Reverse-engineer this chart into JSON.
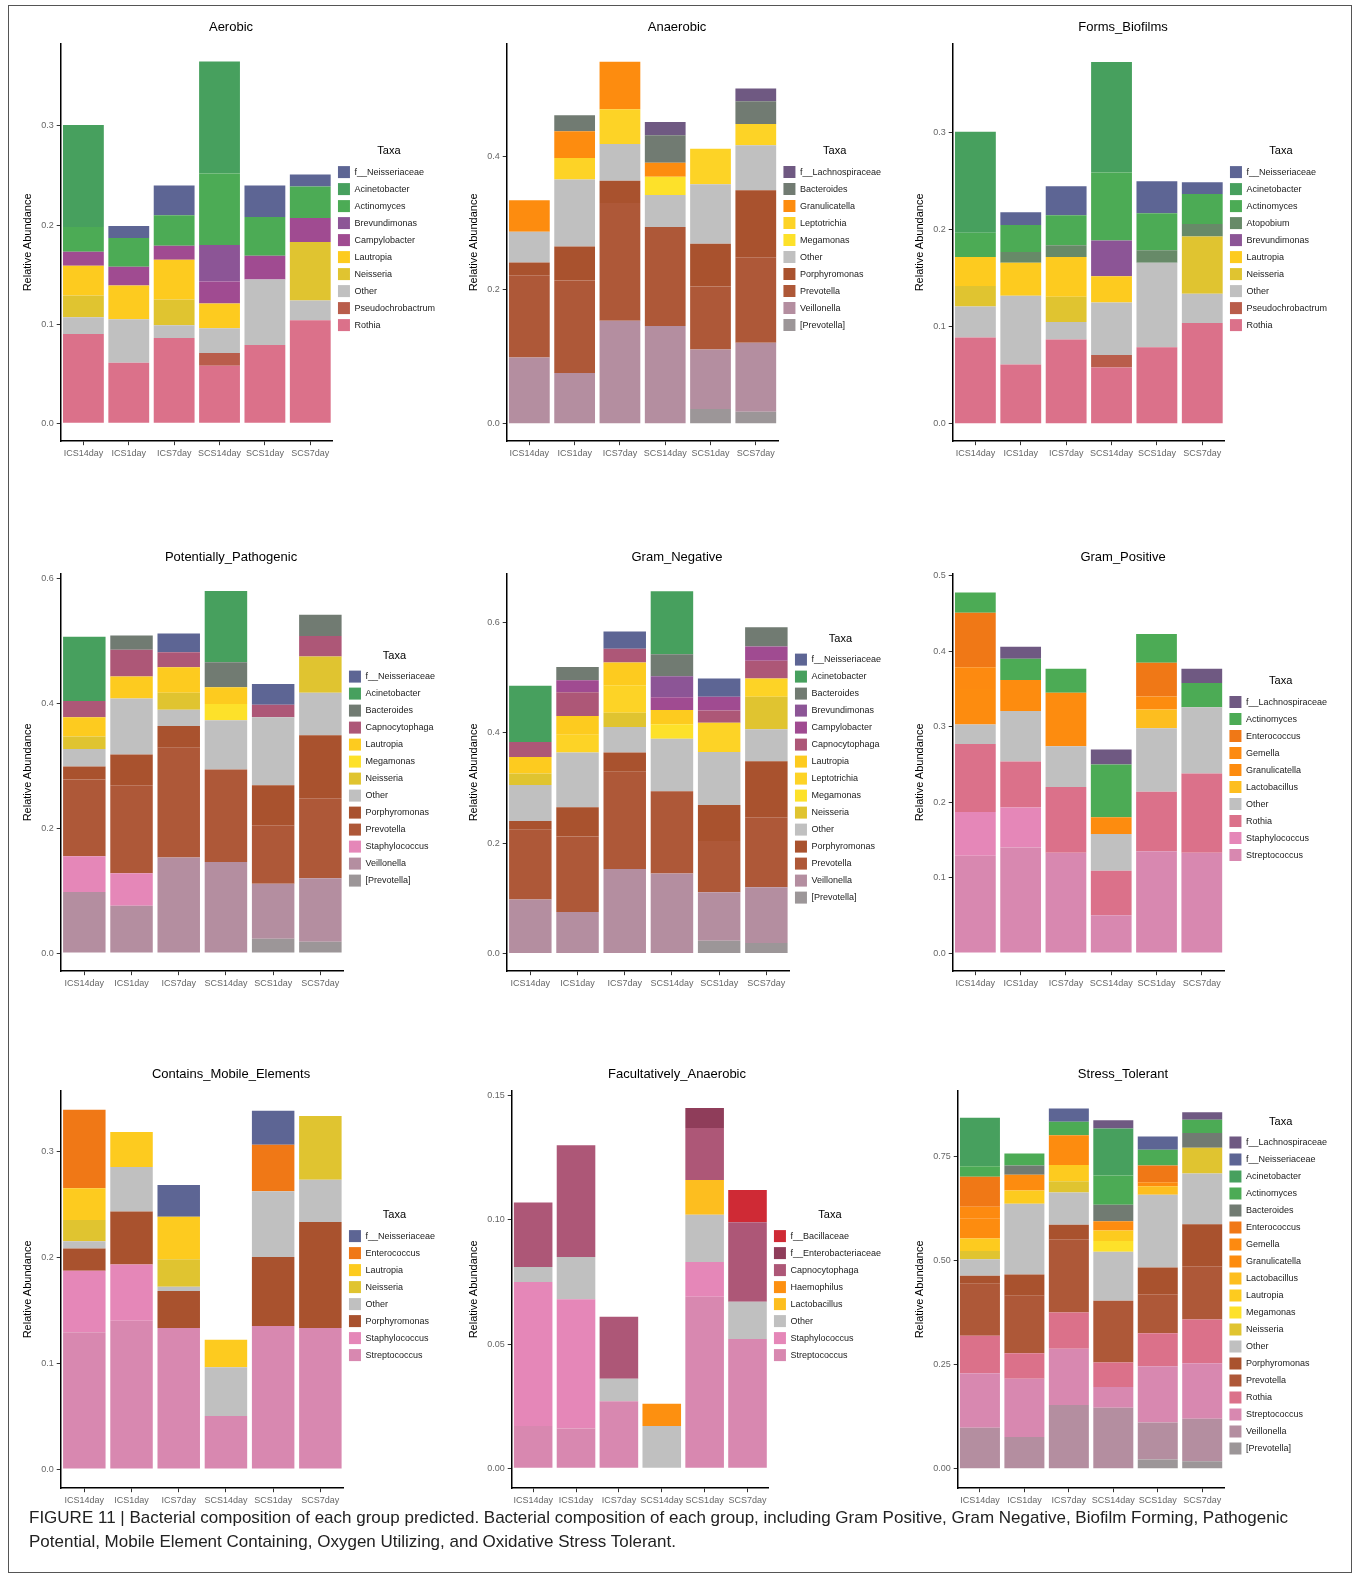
{
  "chart_data": [
    {
      "type": "bar",
      "title": "Aerobic",
      "ylabel": "Relative Abundance",
      "stacked": true,
      "legend": "right",
      "legend_title": "Taxa",
      "grid": false,
      "categories": [
        "ICS14day",
        "ICS1day",
        "ICS7day",
        "SCS14day",
        "SCS1day",
        "SCS7day"
      ],
      "ylim": [
        -0.018,
        0.383
      ],
      "yticks": [
        {
          "value": 0,
          "label": "0.0"
        },
        0.1,
        0.2,
        0.3
      ],
      "series": [
        {
          "name": "Rothia",
          "color": "#db718a",
          "values": [
            0.09,
            0.061,
            0.086,
            0.058,
            0.079,
            0.104
          ]
        },
        {
          "name": "Pseudochrobactrum",
          "color": "#b95d4b",
          "values": [
            null,
            null,
            null,
            0.013,
            null,
            null
          ]
        },
        {
          "name": "Other",
          "color": "#c0c0c0",
          "values": [
            0.017,
            0.044,
            0.013,
            0.025,
            0.066,
            0.02
          ]
        },
        {
          "name": "Neisseria",
          "color": "#e0c430",
          "values": [
            0.022,
            null,
            0.026,
            null,
            null,
            0.059
          ]
        },
        {
          "name": "Lautropia",
          "color": "#fdcb1f",
          "values": [
            0.03,
            0.034,
            0.04,
            0.025,
            null,
            null
          ]
        },
        {
          "name": "Campylobacter",
          "color": "#a04b91",
          "values": [
            0.014,
            0.019,
            0.014,
            0.022,
            0.024,
            0.024
          ]
        },
        {
          "name": "Brevundimonas",
          "color": "#8c5596",
          "values": [
            null,
            null,
            null,
            0.037,
            null,
            null
          ]
        },
        {
          "name": "Actinomyces",
          "color": "#4cab55",
          "values": [
            0.025,
            0.029,
            0.031,
            0.072,
            0.039,
            0.032
          ]
        },
        {
          "name": "Acinetobacter",
          "color": "#47a05e",
          "values": [
            0.103,
            null,
            null,
            0.113,
            null,
            null
          ]
        },
        {
          "name": "f__Neisseriaceae",
          "color": "#5d6594",
          "values": [
            null,
            0.012,
            0.03,
            null,
            0.032,
            0.012
          ]
        }
      ]
    },
    {
      "type": "bar",
      "title": "Anaerobic",
      "ylabel": "Relative Abundance",
      "stacked": true,
      "legend": "right",
      "legend_title": "Taxa",
      "grid": false,
      "categories": [
        "ICS14day",
        "ICS1day",
        "ICS7day",
        "SCS14day",
        "SCS1day",
        "SCS7day"
      ],
      "ylim": [
        -0.026,
        0.568
      ],
      "yticks": [
        {
          "value": 0,
          "label": "0.0"
        },
        0.2,
        0.4
      ],
      "series": [
        {
          "name": "[Prevotella]",
          "color": "#9c9698",
          "values": [
            null,
            null,
            null,
            null,
            0.022,
            0.018
          ]
        },
        {
          "name": "Veillonella",
          "color": "#b48ea0",
          "values": [
            0.099,
            0.076,
            0.154,
            0.146,
            0.089,
            0.103
          ]
        },
        {
          "name": "Prevotella",
          "color": "#ae5838",
          "values": [
            0.123,
            0.138,
            0.176,
            0.148,
            0.094,
            0.128
          ]
        },
        {
          "name": "Porphyromonas",
          "color": "#a9522e",
          "values": [
            0.019,
            0.051,
            0.033,
            null,
            0.064,
            0.1
          ]
        },
        {
          "name": "Other",
          "color": "#c0c0c0",
          "values": [
            0.046,
            0.1,
            0.055,
            0.048,
            0.089,
            0.067
          ]
        },
        {
          "name": "Megamonas",
          "color": "#fde12a",
          "values": [
            null,
            null,
            null,
            0.027,
            null,
            null
          ]
        },
        {
          "name": "Leptotrichia",
          "color": "#fdd326",
          "values": [
            null,
            0.032,
            0.052,
            null,
            0.053,
            0.032
          ]
        },
        {
          "name": "Granulicatella",
          "color": "#fd8c0f",
          "values": [
            0.047,
            0.04,
            0.071,
            0.021,
            null,
            null
          ]
        },
        {
          "name": "Bacteroides",
          "color": "#717b72",
          "values": [
            null,
            0.024,
            null,
            0.041,
            null,
            0.034
          ]
        },
        {
          "name": "f__Lachnospiraceae",
          "color": "#6f5982",
          "values": [
            null,
            null,
            null,
            0.02,
            null,
            0.019
          ]
        }
      ]
    },
    {
      "type": "bar",
      "title": "Forms_Biofilms",
      "ylabel": "Relative Abundance",
      "stacked": true,
      "legend": "right",
      "legend_title": "Taxa",
      "grid": false,
      "categories": [
        "ICS14day",
        "ICS1day",
        "ICS7day",
        "SCS14day",
        "SCS1day",
        "SCS7day"
      ],
      "ylim": [
        -0.018,
        0.392
      ],
      "yticks": [
        {
          "value": 0,
          "label": "0.0"
        },
        0.1,
        0.2,
        0.3
      ],
      "series": [
        {
          "name": "Rothia",
          "color": "#db718a",
          "values": [
            0.089,
            0.061,
            0.087,
            0.058,
            0.079,
            0.104
          ]
        },
        {
          "name": "Pseudochrobactrum",
          "color": "#b95d4b",
          "values": [
            null,
            null,
            null,
            0.013,
            null,
            null
          ]
        },
        {
          "name": "Other",
          "color": "#c0c0c0",
          "values": [
            0.032,
            0.071,
            0.018,
            0.054,
            0.087,
            0.03
          ]
        },
        {
          "name": "Neisseria",
          "color": "#e0c430",
          "values": [
            0.021,
            null,
            0.026,
            null,
            null,
            0.059
          ]
        },
        {
          "name": "Lautropia",
          "color": "#fdcb1f",
          "values": [
            0.03,
            0.034,
            0.041,
            0.027,
            null,
            null
          ]
        },
        {
          "name": "Brevundimonas",
          "color": "#8c5596",
          "values": [
            null,
            null,
            null,
            0.037,
            null,
            null
          ]
        },
        {
          "name": "Atopobium",
          "color": "#678a68",
          "values": [
            null,
            0.011,
            0.012,
            null,
            0.013,
            0.013
          ]
        },
        {
          "name": "Actinomyces",
          "color": "#4cab55",
          "values": [
            0.025,
            0.028,
            0.031,
            0.07,
            0.038,
            0.031
          ]
        },
        {
          "name": "Acinetobacter",
          "color": "#47a05e",
          "values": [
            0.104,
            null,
            null,
            0.114,
            null,
            null
          ]
        },
        {
          "name": "f__Neisseriaceae",
          "color": "#5d6594",
          "values": [
            null,
            0.013,
            0.03,
            null,
            0.033,
            0.012
          ]
        }
      ]
    },
    {
      "type": "bar",
      "title": "Potentially_Pathogenic",
      "ylabel": "Relative Abundance",
      "stacked": true,
      "legend": "right",
      "legend_title": "Taxa",
      "grid": false,
      "categories": [
        "ICS14day",
        "ICS1day",
        "ICS7day",
        "SCS14day",
        "SCS1day",
        "SCS7day"
      ],
      "ylim": [
        -0.029,
        0.608
      ],
      "yticks": [
        {
          "value": 0,
          "label": "0.0"
        },
        0.2,
        0.4,
        0.6
      ],
      "series": [
        {
          "name": "[Prevotella]",
          "color": "#9c9698",
          "values": [
            null,
            null,
            null,
            null,
            0.023,
            0.018
          ]
        },
        {
          "name": "Veillonella",
          "color": "#b48ea0",
          "values": [
            0.098,
            0.076,
            0.153,
            0.146,
            0.088,
            0.102
          ]
        },
        {
          "name": "Staphylococcus",
          "color": "#e587b8",
          "values": [
            0.057,
            0.052,
            null,
            null,
            null,
            null
          ]
        },
        {
          "name": "Prevotella",
          "color": "#ae5838",
          "values": [
            0.123,
            0.141,
            0.176,
            0.148,
            0.094,
            0.128
          ]
        },
        {
          "name": "Porphyromonas",
          "color": "#a9522e",
          "values": [
            0.021,
            0.049,
            0.035,
            null,
            0.064,
            0.101
          ]
        },
        {
          "name": "Other",
          "color": "#c0c0c0",
          "values": [
            0.028,
            0.09,
            0.026,
            0.079,
            0.109,
            0.068
          ]
        },
        {
          "name": "Neisseria",
          "color": "#e0c430",
          "values": [
            0.02,
            null,
            0.027,
            null,
            null,
            0.058
          ]
        },
        {
          "name": "Megamonas",
          "color": "#fde12a",
          "values": [
            null,
            null,
            null,
            0.026,
            null,
            null
          ]
        },
        {
          "name": "Lautropia",
          "color": "#fdcb1f",
          "values": [
            0.031,
            0.035,
            0.041,
            0.027,
            null,
            null
          ]
        },
        {
          "name": "Capnocytophaga",
          "color": "#ad5777",
          "values": [
            0.026,
            0.043,
            0.024,
            null,
            0.02,
            0.033
          ]
        },
        {
          "name": "Bacteroides",
          "color": "#717b72",
          "values": [
            null,
            0.023,
            null,
            0.04,
            null,
            0.034
          ]
        },
        {
          "name": "Acinetobacter",
          "color": "#47a05e",
          "values": [
            0.103,
            null,
            null,
            0.114,
            null,
            null
          ]
        },
        {
          "name": "f__Neisseriaceae",
          "color": "#5d6594",
          "values": [
            null,
            null,
            0.03,
            null,
            0.033,
            null
          ]
        }
      ]
    },
    {
      "type": "bar",
      "title": "Gram_Negative",
      "ylabel": "Relative Abundance",
      "stacked": true,
      "legend": "right",
      "legend_title": "Taxa",
      "grid": false,
      "categories": [
        "ICS14day",
        "ICS1day",
        "ICS7day",
        "SCS14day",
        "SCS1day",
        "SCS7day"
      ],
      "ylim": [
        -0.032,
        0.688
      ],
      "yticks": [
        {
          "value": 0,
          "label": "0.0"
        },
        0.2,
        0.4,
        0.6
      ],
      "series": [
        {
          "name": "[Prevotella]",
          "color": "#9c9698",
          "values": [
            null,
            null,
            null,
            null,
            0.023,
            0.019
          ]
        },
        {
          "name": "Veillonella",
          "color": "#b48ea0",
          "values": [
            0.098,
            0.075,
            0.153,
            0.145,
            0.088,
            0.101
          ]
        },
        {
          "name": "Prevotella",
          "color": "#ae5838",
          "values": [
            0.126,
            0.137,
            0.176,
            0.149,
            0.093,
            0.127
          ]
        },
        {
          "name": "Porphyromonas",
          "color": "#a9522e",
          "values": [
            0.016,
            0.053,
            0.035,
            null,
            0.065,
            0.101
          ]
        },
        {
          "name": "Other",
          "color": "#c0c0c0",
          "values": [
            0.065,
            0.099,
            0.046,
            0.095,
            0.096,
            0.058
          ]
        },
        {
          "name": "Neisseria",
          "color": "#e0c430",
          "values": [
            0.021,
            null,
            0.026,
            null,
            null,
            0.059
          ]
        },
        {
          "name": "Megamonas",
          "color": "#fde12a",
          "values": [
            null,
            null,
            null,
            0.026,
            null,
            null
          ]
        },
        {
          "name": "Leptotrichia",
          "color": "#fdd326",
          "values": [
            null,
            0.032,
            0.05,
            null,
            0.053,
            0.033
          ]
        },
        {
          "name": "Lautropia",
          "color": "#fdcb1f",
          "values": [
            0.03,
            0.034,
            0.041,
            0.026,
            null,
            null
          ]
        },
        {
          "name": "Capnocytophaga",
          "color": "#ad5777",
          "values": [
            0.027,
            0.043,
            0.025,
            null,
            0.022,
            0.032
          ]
        },
        {
          "name": "Campylobacter",
          "color": "#a04b91",
          "values": [
            null,
            0.022,
            null,
            0.023,
            0.025,
            0.026
          ]
        },
        {
          "name": "Brevundimonas",
          "color": "#8c5596",
          "values": [
            null,
            null,
            null,
            0.038,
            null,
            null
          ]
        },
        {
          "name": "Bacteroides",
          "color": "#717b72",
          "values": [
            null,
            0.024,
            null,
            0.04,
            null,
            0.035
          ]
        },
        {
          "name": "Acinetobacter",
          "color": "#47a05e",
          "values": [
            0.102,
            null,
            null,
            0.114,
            null,
            null
          ]
        },
        {
          "name": "f__Neisseriaceae",
          "color": "#5d6594",
          "values": [
            null,
            null,
            0.031,
            null,
            0.033,
            null
          ]
        }
      ]
    },
    {
      "type": "bar",
      "title": "Gram_Positive",
      "ylabel": "Relative Abundance",
      "stacked": true,
      "legend": "right",
      "legend_title": "Taxa",
      "grid": false,
      "categories": [
        "ICS14day",
        "ICS1day",
        "ICS7day",
        "SCS14day",
        "SCS1day",
        "SCS7day"
      ],
      "ylim": [
        -0.024,
        0.503
      ],
      "yticks": [
        {
          "value": 0,
          "label": "0.0"
        },
        0.1,
        0.2,
        0.3,
        0.4,
        0.5
      ],
      "series": [
        {
          "name": "Streptococcus",
          "color": "#d888b0",
          "values": [
            0.129,
            0.14,
            0.133,
            0.05,
            0.135,
            0.133
          ]
        },
        {
          "name": "Staphylococcus",
          "color": "#e587b8",
          "values": [
            0.058,
            0.053,
            null,
            null,
            null,
            null
          ]
        },
        {
          "name": "Rothia",
          "color": "#db718a",
          "values": [
            0.09,
            0.061,
            0.087,
            0.059,
            0.079,
            0.105
          ]
        },
        {
          "name": "Other",
          "color": "#c0c0c0",
          "values": [
            0.026,
            0.067,
            0.054,
            0.049,
            0.084,
            0.088
          ]
        },
        {
          "name": "Lactobacillus",
          "color": "#fdbe1f",
          "values": [
            null,
            null,
            null,
            null,
            0.025,
            null
          ]
        },
        {
          "name": "Granulicatella",
          "color": "#fd8c0f",
          "values": [
            0.047,
            0.041,
            0.071,
            0.022,
            0.017,
            null
          ]
        },
        {
          "name": "Gemella",
          "color": "#fd8a10",
          "values": [
            0.029,
            null,
            null,
            null,
            null,
            null
          ]
        },
        {
          "name": "Enterococcus",
          "color": "#f07816",
          "values": [
            0.072,
            null,
            null,
            null,
            0.045,
            null
          ]
        },
        {
          "name": "Actinomyces",
          "color": "#4cab55",
          "values": [
            0.027,
            0.028,
            0.032,
            0.07,
            0.038,
            0.032
          ]
        },
        {
          "name": "f__Lachnospiraceae",
          "color": "#6f5982",
          "values": [
            null,
            0.016,
            null,
            0.02,
            null,
            0.019
          ]
        }
      ]
    },
    {
      "type": "bar",
      "title": "Contains_Mobile_Elements",
      "ylabel": "Relative Abundance",
      "stacked": true,
      "legend": "right",
      "legend_title": "Taxa",
      "grid": false,
      "categories": [
        "ICS14day",
        "ICS1day",
        "ICS7day",
        "SCS14day",
        "SCS1day",
        "SCS7day"
      ],
      "ylim": [
        -0.018,
        0.357
      ],
      "yticks": [
        {
          "value": 0,
          "label": "0.0"
        },
        0.1,
        0.2,
        0.3
      ],
      "series": [
        {
          "name": "Streptococcus",
          "color": "#d888b0",
          "values": [
            0.129,
            0.14,
            0.133,
            0.05,
            0.135,
            0.133
          ]
        },
        {
          "name": "Staphylococcus",
          "color": "#e587b8",
          "values": [
            0.058,
            0.053,
            null,
            null,
            null,
            null
          ]
        },
        {
          "name": "Porphyromonas",
          "color": "#a9522e",
          "values": [
            0.021,
            0.05,
            0.035,
            null,
            0.065,
            0.1
          ]
        },
        {
          "name": "Other",
          "color": "#c0c0c0",
          "values": [
            0.007,
            0.042,
            0.004,
            0.046,
            0.062,
            0.04
          ]
        },
        {
          "name": "Neisseria",
          "color": "#e0c430",
          "values": [
            0.02,
            null,
            0.026,
            null,
            null,
            0.06
          ]
        },
        {
          "name": "Lautropia",
          "color": "#fdcb1f",
          "values": [
            0.03,
            0.033,
            0.04,
            0.026,
            null,
            null
          ]
        },
        {
          "name": "Enterococcus",
          "color": "#f07816",
          "values": [
            0.074,
            null,
            null,
            null,
            0.044,
            null
          ]
        },
        {
          "name": "f__Neisseriaceae",
          "color": "#5d6594",
          "values": [
            null,
            null,
            0.03,
            null,
            0.032,
            null
          ]
        }
      ]
    },
    {
      "type": "bar",
      "title": "Facultatively_Anaerobic",
      "ylabel": "Relative Abundance",
      "stacked": true,
      "legend": "right",
      "legend_title": "Taxa",
      "grid": false,
      "categories": [
        "ICS14day",
        "ICS1day",
        "ICS7day",
        "SCS14day",
        "SCS1day",
        "SCS7day"
      ],
      "ylim": [
        -0.008,
        0.152
      ],
      "yticks": [
        {
          "value": 0,
          "label": "0.00"
        },
        0.05,
        {
          "value": 0.1,
          "label": "0.10"
        },
        0.15
      ],
      "series": [
        {
          "name": "Streptococcus",
          "color": "#d888b0",
          "values": [
            0.017,
            0.016,
            0.027,
            null,
            0.069,
            0.052
          ]
        },
        {
          "name": "Staphylococcus",
          "color": "#e587b8",
          "values": [
            0.058,
            0.052,
            null,
            null,
            0.014,
            null
          ]
        },
        {
          "name": "Other",
          "color": "#c0c0c0",
          "values": [
            0.006,
            0.017,
            0.009,
            0.017,
            0.019,
            0.015
          ]
        },
        {
          "name": "Lactobacillus",
          "color": "#fdbe1f",
          "values": [
            null,
            null,
            null,
            null,
            0.014,
            null
          ]
        },
        {
          "name": "Haemophilus",
          "color": "#fd9010",
          "values": [
            null,
            null,
            null,
            0.009,
            null,
            null
          ]
        },
        {
          "name": "Capnocytophaga",
          "color": "#ad5777",
          "values": [
            0.026,
            0.045,
            0.025,
            null,
            0.021,
            0.032
          ]
        },
        {
          "name": "f__Enterobacteriaceae",
          "color": "#8f3d5a",
          "values": [
            null,
            null,
            null,
            null,
            0.008,
            null
          ]
        },
        {
          "name": "f__Bacillaceae",
          "color": "#cf2a35",
          "values": [
            null,
            null,
            null,
            null,
            null,
            0.013
          ]
        }
      ]
    },
    {
      "type": "bar",
      "title": "Stress_Tolerant",
      "ylabel": "Relative Abundance",
      "stacked": true,
      "legend": "right",
      "legend_title": "Taxa",
      "grid": false,
      "categories": [
        "ICS14day",
        "ICS1day",
        "ICS7day",
        "SCS14day",
        "SCS1day",
        "SCS7day"
      ],
      "ylim": [
        -0.047,
        0.908
      ],
      "yticks": [
        {
          "value": 0,
          "label": "0.00"
        },
        0.25,
        {
          "value": 0.5,
          "label": "0.50"
        },
        0.75
      ],
      "annotations": [
        "FIGURE 11 | Bacterial composition of each group predicted. Bacterial composition of each group, including Gram Positive, Gram Negative, Biofilm Forming, Pathogenic Potential, Mobile Element Containing, Oxygen Utilizing, and Oxidative Stress Tolerant."
      ],
      "series": [
        {
          "name": "[Prevotella]",
          "color": "#9c9698",
          "values": [
            null,
            null,
            null,
            null,
            0.022,
            0.018
          ]
        },
        {
          "name": "Veillonella",
          "color": "#b48ea0",
          "values": [
            0.098,
            0.076,
            0.153,
            0.146,
            0.089,
            0.102
          ]
        },
        {
          "name": "Streptococcus",
          "color": "#d888b0",
          "values": [
            0.131,
            0.14,
            0.135,
            0.05,
            0.135,
            0.133
          ]
        },
        {
          "name": "Rothia",
          "color": "#db718a",
          "values": [
            0.09,
            0.061,
            0.087,
            0.059,
            0.079,
            0.105
          ]
        },
        {
          "name": "Prevotella",
          "color": "#ae5838",
          "values": [
            0.125,
            0.138,
            0.176,
            0.148,
            0.094,
            0.128
          ]
        },
        {
          "name": "Porphyromonas",
          "color": "#a9522e",
          "values": [
            0.019,
            0.051,
            0.035,
            null,
            0.064,
            0.101
          ]
        },
        {
          "name": "Other",
          "color": "#c0c0c0",
          "values": [
            0.04,
            0.17,
            0.077,
            0.118,
            0.175,
            0.122
          ]
        },
        {
          "name": "Neisseria",
          "color": "#e0c430",
          "values": [
            0.02,
            null,
            0.027,
            null,
            null,
            0.062
          ]
        },
        {
          "name": "Megamonas",
          "color": "#fde12a",
          "values": [
            null,
            null,
            null,
            0.026,
            null,
            null
          ]
        },
        {
          "name": "Lautropia",
          "color": "#fdcb1f",
          "values": [
            0.03,
            0.032,
            0.039,
            0.025,
            null,
            null
          ]
        },
        {
          "name": "Lactobacillus",
          "color": "#fdbe1f",
          "values": [
            null,
            null,
            null,
            null,
            0.02,
            null
          ]
        },
        {
          "name": "Granulicatella",
          "color": "#fd8c0f",
          "values": [
            0.047,
            0.038,
            0.072,
            0.022,
            0.01,
            null
          ]
        },
        {
          "name": "Gemella",
          "color": "#fd8a10",
          "values": [
            0.029,
            null,
            null,
            null,
            null,
            null
          ]
        },
        {
          "name": "Enterococcus",
          "color": "#f07816",
          "values": [
            0.072,
            null,
            null,
            null,
            0.04,
            null
          ]
        },
        {
          "name": "Bacteroides",
          "color": "#717b72",
          "values": [
            null,
            0.022,
            null,
            0.04,
            null,
            0.035
          ]
        },
        {
          "name": "Actinomyces",
          "color": "#4cab55",
          "values": [
            0.025,
            0.029,
            0.032,
            0.07,
            0.038,
            0.032
          ]
        },
        {
          "name": "Acinetobacter",
          "color": "#47a05e",
          "values": [
            0.117,
            null,
            null,
            0.113,
            null,
            null
          ]
        },
        {
          "name": "f__Neisseriaceae",
          "color": "#5d6594",
          "values": [
            null,
            null,
            0.032,
            null,
            0.032,
            null
          ]
        },
        {
          "name": "f__Lachnospiraceae",
          "color": "#6f5982",
          "values": [
            null,
            null,
            null,
            0.02,
            null,
            0.018
          ]
        }
      ]
    }
  ]
}
